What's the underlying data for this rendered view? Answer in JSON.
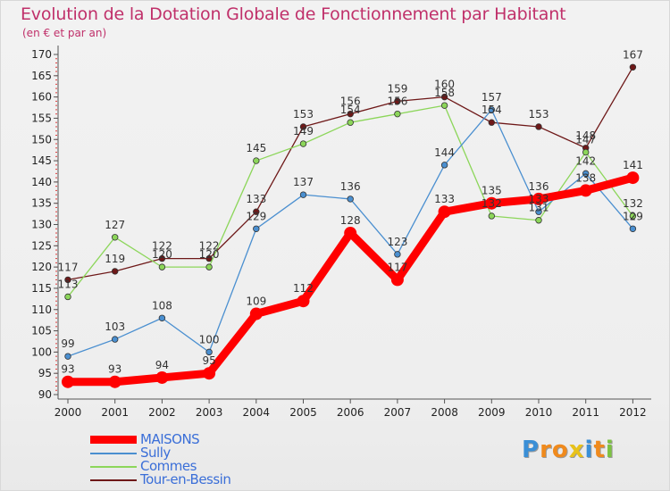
{
  "chart_data": {
    "type": "line",
    "title": "Evolution de la Dotation Globale de Fonctionnement par Habitant",
    "subtitle": "(en € et par an)",
    "xlabel": "",
    "ylabel": "",
    "ylim": [
      90,
      170
    ],
    "ytick_step": 5,
    "grid": false,
    "categories": [
      "2000",
      "2001",
      "2002",
      "2003",
      "2004",
      "2005",
      "2006",
      "2007",
      "2008",
      "2009",
      "2010",
      "2011",
      "2012"
    ],
    "series": [
      {
        "name": "MAISONS",
        "color": "#ff0000",
        "values": [
          93,
          93,
          94,
          95,
          109,
          112,
          128,
          117,
          133,
          135,
          136,
          138,
          141
        ],
        "labels": [
          "93",
          "93",
          "94",
          "95",
          "109",
          "112",
          "128",
          "117",
          "133",
          "135",
          "136",
          "138",
          "141"
        ]
      },
      {
        "name": "Sully",
        "color": "#4a8fd0",
        "values": [
          99,
          103,
          108,
          100,
          129,
          137,
          136,
          123,
          144,
          157,
          133,
          142,
          129
        ],
        "labels": [
          "99",
          "103",
          "108",
          "100",
          "129",
          "137",
          "136",
          "123",
          "144",
          "157",
          "133",
          "142",
          "129"
        ]
      },
      {
        "name": "Commes",
        "color": "#8cd65a",
        "values": [
          113,
          127,
          120,
          120,
          145,
          149,
          154,
          156,
          158,
          132,
          131,
          147,
          132
        ],
        "labels": [
          "113",
          "127",
          "120",
          "120",
          "145",
          "149",
          "154",
          "156",
          "158",
          "132",
          "131",
          "147",
          "132"
        ]
      },
      {
        "name": "Tour-en-Bessin",
        "color": "#6e1818",
        "values": [
          117,
          119,
          122,
          122,
          133,
          153,
          156,
          159,
          160,
          154,
          153,
          148,
          167
        ],
        "labels": [
          "117",
          "119",
          "122",
          "122",
          "133",
          "153",
          "156",
          "159",
          "160",
          "154",
          "153",
          "148",
          "167"
        ]
      }
    ],
    "legend_position": "bottom-left"
  },
  "branding": {
    "logo_letters": [
      "P",
      "r",
      "o",
      "x",
      "i",
      "t",
      "i"
    ],
    "logo_colors": [
      "#3a8fd6",
      "#f08a1c",
      "#f08a1c",
      "#e8c21a",
      "#3a8fd6",
      "#f08a1c",
      "#7cc242"
    ]
  }
}
